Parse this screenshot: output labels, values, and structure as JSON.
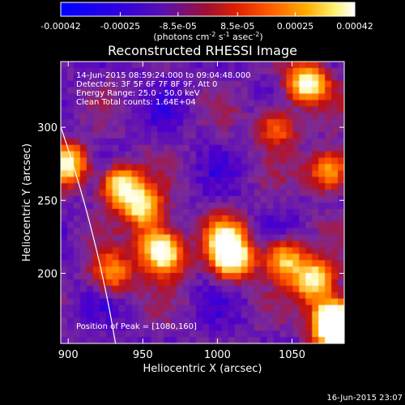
{
  "chart_data": {
    "type": "heatmap",
    "title": "Reconstructed RHESSI Image",
    "xlabel": "Heliocentric X (arcsec)",
    "ylabel": "Heliocentric Y (arcsec)",
    "xlim": [
      895,
      1085
    ],
    "ylim": [
      152,
      345
    ],
    "x_ticks": [
      900,
      950,
      1000,
      1050
    ],
    "x_tick_labels": [
      "900",
      "950",
      "1000",
      "1050"
    ],
    "y_ticks": [
      200,
      250,
      300
    ],
    "y_tick_labels": [
      "200",
      "250",
      "300"
    ],
    "colorbar": {
      "range": [
        -0.00042,
        0.00042
      ],
      "tick_values": [
        -0.00042,
        -0.00025,
        -8.5e-05,
        8.5e-05,
        0.00025,
        0.00042
      ],
      "tick_labels": [
        "-0.00042",
        "-0.00025",
        "-8.5e-05",
        "8.5e-05",
        "0.00025",
        "0.00042"
      ],
      "units_label": "(photons cm",
      "units_sup1": "-2",
      "units_mid": " s",
      "units_sup2": "-1",
      "units_end": " asec",
      "units_sup3": "-2",
      "units_close": ")"
    },
    "colors": [
      "#0000ff",
      "#5000c8",
      "#7a2a9a",
      "#c01010",
      "#ff5000",
      "#ffa000",
      "#fff8a0",
      "#ffffff"
    ],
    "annotations": [
      "14-Jun-2015 08:59:24.000 to 09:04:48.000",
      "Detectors: 3F 5F 6F 7F 8F 9F, Att 0",
      "Energy Range: 25.0 - 50.0 keV",
      "Clean    Total counts: 1.64E+04"
    ],
    "peak_label": "Position of Peak = [1080,160]",
    "peak": [
      1080,
      160
    ],
    "limb_visible": true,
    "bright_regions": [
      {
        "x": 1060,
        "y": 330,
        "intensity": 0.9
      },
      {
        "x": 1075,
        "y": 270,
        "intensity": 0.7
      },
      {
        "x": 900,
        "y": 275,
        "intensity": 0.8
      },
      {
        "x": 935,
        "y": 260,
        "intensity": 0.85
      },
      {
        "x": 950,
        "y": 245,
        "intensity": 0.75
      },
      {
        "x": 960,
        "y": 220,
        "intensity": 0.7
      },
      {
        "x": 965,
        "y": 210,
        "intensity": 0.6
      },
      {
        "x": 1010,
        "y": 210,
        "intensity": 0.9
      },
      {
        "x": 1005,
        "y": 225,
        "intensity": 0.65
      },
      {
        "x": 1045,
        "y": 210,
        "intensity": 0.7
      },
      {
        "x": 1065,
        "y": 195,
        "intensity": 0.85
      },
      {
        "x": 1078,
        "y": 170,
        "intensity": 1.0
      },
      {
        "x": 1080,
        "y": 160,
        "intensity": 1.0
      },
      {
        "x": 930,
        "y": 200,
        "intensity": 0.55
      },
      {
        "x": 1040,
        "y": 300,
        "intensity": 0.5
      }
    ]
  },
  "footer_timestamp": "16-Jun-2015 23:07"
}
